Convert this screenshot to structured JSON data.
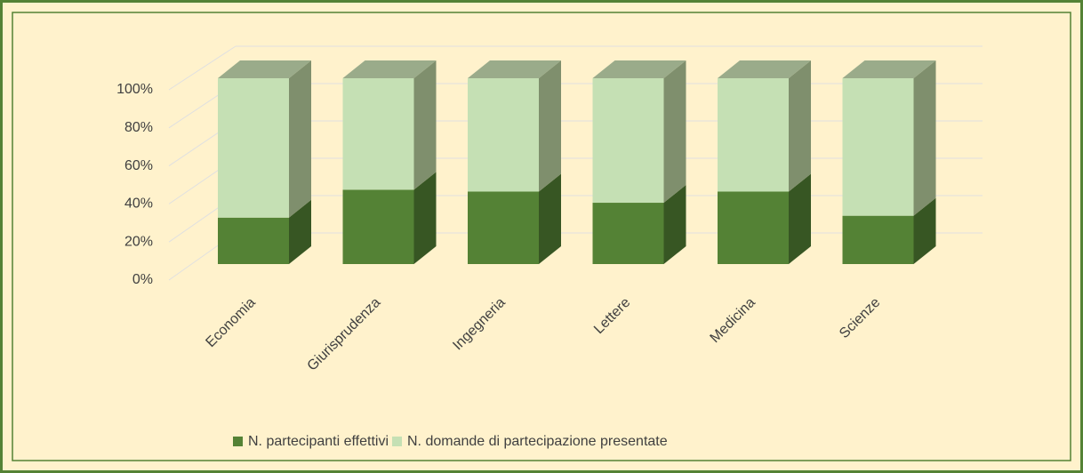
{
  "chart_data": {
    "type": "bar3d_stacked",
    "categories": [
      "Economia",
      "Giurisprudenza",
      "Ingegneria",
      "Lettere",
      "Medicina",
      "Scienze"
    ],
    "series": [
      {
        "name": "N. partecipanti effettivi",
        "color": "#548235",
        "side_color": "#375623",
        "values": [
          25,
          40,
          39,
          33,
          39,
          26
        ]
      },
      {
        "name": "N. domande di partecipazione presentate",
        "color": "#c5e0b4",
        "side_color": "#7f8f6d",
        "values": [
          75,
          60,
          61,
          67,
          61,
          74
        ]
      }
    ],
    "top_color": "#9aab8a",
    "ylim": [
      0,
      100
    ],
    "yticks": [
      {
        "value": 0,
        "label": "0%"
      },
      {
        "value": 20,
        "label": "20%"
      },
      {
        "value": 40,
        "label": "40%"
      },
      {
        "value": 60,
        "label": "60%"
      },
      {
        "value": 80,
        "label": "80%"
      },
      {
        "value": 100,
        "label": "100%"
      }
    ],
    "grid": true,
    "legend": "bottom"
  }
}
